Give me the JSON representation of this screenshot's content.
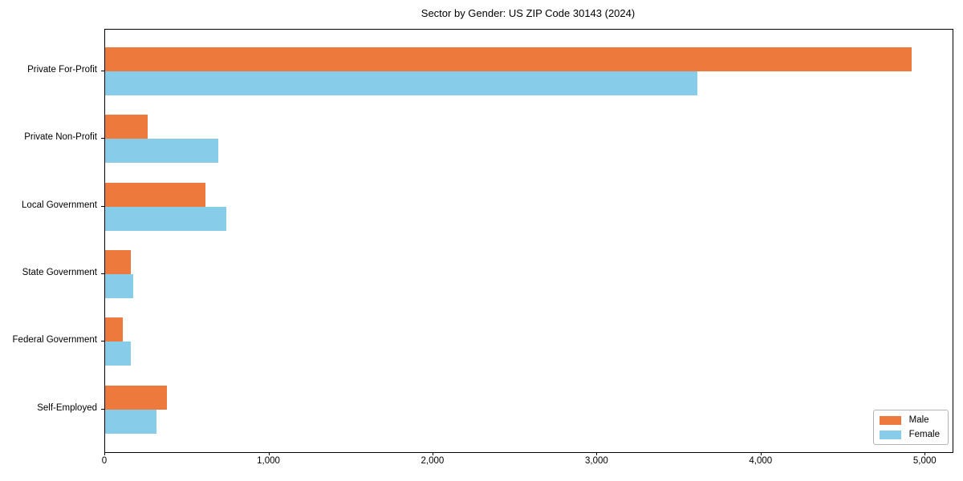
{
  "chart_data": {
    "type": "bar",
    "orientation": "horizontal",
    "title": "Sector by Gender: US ZIP Code 30143 (2024)",
    "categories": [
      "Private For-Profit",
      "Private Non-Profit",
      "Local Government",
      "State Government",
      "Federal Government",
      "Self-Employed"
    ],
    "series": [
      {
        "name": "Male",
        "color": "#ed7a3c",
        "values": [
          4917,
          259,
          611,
          157,
          108,
          377
        ]
      },
      {
        "name": "Female",
        "color": "#87cde9",
        "values": [
          3611,
          690,
          739,
          171,
          157,
          313
        ]
      }
    ],
    "xlabel": "",
    "ylabel": "",
    "xlim": [
      0,
      5165
    ],
    "x_ticks": [
      0,
      1000,
      2000,
      3000,
      4000,
      5000
    ],
    "x_tick_labels": [
      "0",
      "1,000",
      "2,000",
      "3,000",
      "4,000",
      "5,000"
    ],
    "grid": false,
    "legend": {
      "position": "lower right",
      "entries": [
        "Male",
        "Female"
      ]
    },
    "spine_color": "#000000"
  }
}
